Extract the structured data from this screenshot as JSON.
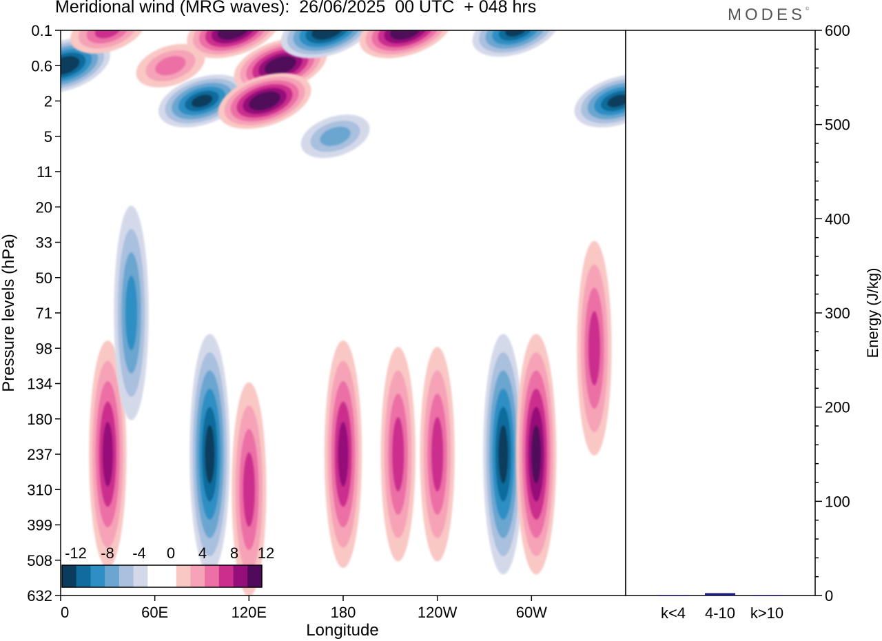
{
  "title": "Meridional wind (MRG waves):  26/06/2025  00 UTC  + 048 hrs",
  "logo": "MODES",
  "logo_mark": "©",
  "colors": {
    "neg": [
      "#0b3c5d",
      "#0f6c9c",
      "#2f8fc4",
      "#6aa6d0",
      "#a9c0de",
      "#d4d9ea"
    ],
    "pos": [
      "#f9c7c4",
      "#f6a3b8",
      "#ec6fa6",
      "#cc2e8e",
      "#960e7a",
      "#4f0a5a"
    ],
    "bar": "#1a1a7a"
  },
  "chart_data": [
    {
      "type": "heatmap",
      "title": "Meridional wind (MRG waves):  26/06/2025  00 UTC  + 048 hrs",
      "xlabel": "Longitude",
      "ylabel": "Pressure levels (hPa)",
      "x_ticks": [
        "0",
        "60E",
        "120E",
        "180",
        "120W",
        "60W"
      ],
      "y_ticks": [
        "0.1",
        "0.6",
        "2",
        "5",
        "11",
        "20",
        "33",
        "50",
        "71",
        "98",
        "134",
        "180",
        "237",
        "310",
        "399",
        "508",
        "632"
      ],
      "colorbar": {
        "labels": [
          "-12",
          "-8",
          "-4",
          "0",
          "4",
          "8",
          "12"
        ],
        "levels": [
          -14,
          -12,
          -10,
          -8,
          -6,
          -4,
          -2,
          2,
          4,
          6,
          8,
          10,
          12,
          14
        ]
      },
      "features": [
        {
          "lon": 2,
          "level": "0.6",
          "value": -14
        },
        {
          "lon": 30,
          "level": "0.1",
          "value": 8
        },
        {
          "lon": 70,
          "level": "0.6",
          "value": 6
        },
        {
          "lon": 90,
          "level": "2",
          "value": -12
        },
        {
          "lon": 110,
          "level": "0.1",
          "value": 14
        },
        {
          "lon": 140,
          "level": "0.6",
          "value": 14
        },
        {
          "lon": 130,
          "level": "2",
          "value": 14
        },
        {
          "lon": 170,
          "level": "0.1",
          "value": -14
        },
        {
          "lon": 175,
          "level": "5",
          "value": -6
        },
        {
          "lon": 220,
          "level": "0.1",
          "value": 14
        },
        {
          "lon": 290,
          "level": "0.1",
          "value": -12
        },
        {
          "lon": 355,
          "level": "2",
          "value": -12
        },
        {
          "lon": 30,
          "level": "237",
          "value": 10
        },
        {
          "lon": 45,
          "level": "71",
          "value": -8
        },
        {
          "lon": 95,
          "level": "237",
          "value": -12
        },
        {
          "lon": 120,
          "level": "310",
          "value": 8
        },
        {
          "lon": 180,
          "level": "237",
          "value": 10
        },
        {
          "lon": 215,
          "level": "237",
          "value": 8
        },
        {
          "lon": 240,
          "level": "237",
          "value": 8
        },
        {
          "lon": 282,
          "level": "237",
          "value": -12
        },
        {
          "lon": 303,
          "level": "237",
          "value": 12
        },
        {
          "lon": 340,
          "level": "98",
          "value": 8
        }
      ]
    },
    {
      "type": "bar",
      "ylabel": "Energy (J/kg)",
      "categories": [
        "k<4",
        "4-10",
        "k>10"
      ],
      "values": [
        0.5,
        2.5,
        0.5
      ],
      "ylim": [
        0,
        600
      ],
      "y_ticks": [
        "0",
        "100",
        "200",
        "300",
        "400",
        "500",
        "600"
      ]
    }
  ]
}
